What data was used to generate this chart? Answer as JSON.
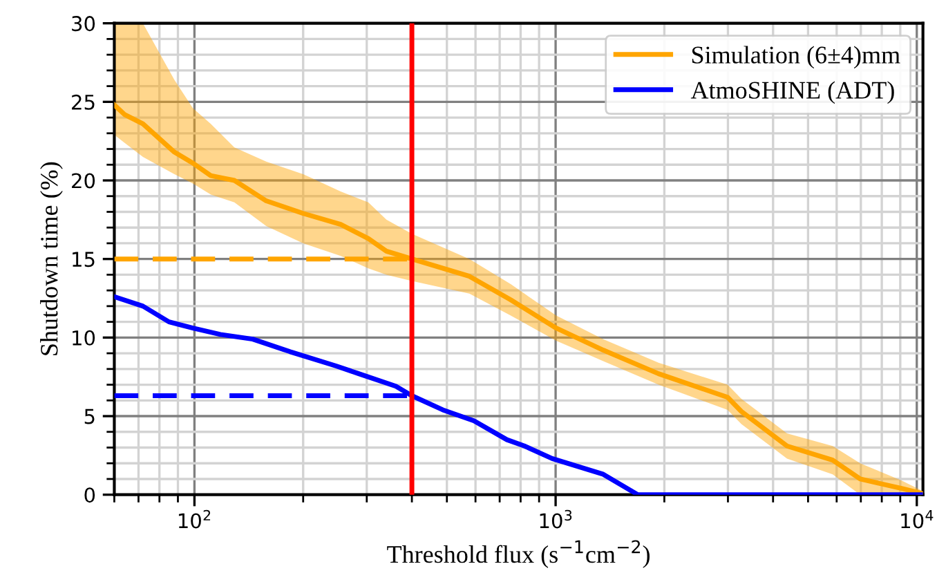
{
  "chart_data": {
    "type": "line",
    "xlabel": "Threshold flux (s$^{−1}$cm$^{−2}$)",
    "ylabel": "Shutdown time (%)",
    "log": "x",
    "grid": true,
    "legend": "top right",
    "line_style": "solid",
    "marker": "none",
    "xlim": [
      60,
      10400
    ],
    "ylim": [
      0,
      30
    ],
    "xticks": [
      {
        "value": 60,
        "label": null
      },
      {
        "value": 70,
        "label": null
      },
      {
        "value": 80,
        "label": null
      },
      {
        "value": 90,
        "label": null
      },
      {
        "value": 100,
        "label": "10$^{2}$"
      },
      {
        "value": 200,
        "label": null
      },
      {
        "value": 300,
        "label": null
      },
      {
        "value": 400,
        "label": null
      },
      {
        "value": 500,
        "label": null
      },
      {
        "value": 600,
        "label": null
      },
      {
        "value": 700,
        "label": null
      },
      {
        "value": 800,
        "label": null
      },
      {
        "value": 900,
        "label": null
      },
      {
        "value": 1000,
        "label": "10$^{3}$"
      },
      {
        "value": 2000,
        "label": null
      },
      {
        "value": 3000,
        "label": null
      },
      {
        "value": 4000,
        "label": null
      },
      {
        "value": 5000,
        "label": null
      },
      {
        "value": 6000,
        "label": null
      },
      {
        "value": 7000,
        "label": null
      },
      {
        "value": 8000,
        "label": null
      },
      {
        "value": 9000,
        "label": null
      },
      {
        "value": 10000,
        "label": "10$^{4}$"
      }
    ],
    "yticks": [
      0,
      {
        "value": 1,
        "label": null
      },
      {
        "value": 2,
        "label": null
      },
      {
        "value": 3,
        "label": null
      },
      {
        "value": 4,
        "label": null
      },
      5,
      {
        "value": 6,
        "label": null
      },
      {
        "value": 7,
        "label": null
      },
      {
        "value": 8,
        "label": null
      },
      {
        "value": 9,
        "label": null
      },
      10,
      {
        "value": 11,
        "label": null
      },
      {
        "value": 12,
        "label": null
      },
      {
        "value": 13,
        "label": null
      },
      {
        "value": 14,
        "label": null
      },
      15,
      {
        "value": 16,
        "label": null
      },
      {
        "value": 17,
        "label": null
      },
      {
        "value": 18,
        "label": null
      },
      {
        "value": 19,
        "label": null
      },
      20,
      {
        "value": 21,
        "label": null
      },
      {
        "value": 22,
        "label": null
      },
      {
        "value": 23,
        "label": null
      },
      {
        "value": 24,
        "label": null
      },
      25,
      {
        "value": 26,
        "label": null
      },
      {
        "value": 27,
        "label": null
      },
      {
        "value": 28,
        "label": null
      },
      {
        "value": 29,
        "label": null
      },
      30
    ],
    "series": [
      {
        "name": "Simulation (6±4)mm",
        "color": "#ffa500",
        "x": [
          60,
          64,
          72,
          88,
          99,
          111,
          129,
          158,
          200,
          254,
          303,
          340,
          400,
          577,
          751,
          1004,
          1355,
          1927,
          2993,
          3268,
          4372,
          5848,
          6970,
          9080,
          10260
        ],
        "values": [
          24.8,
          24.2,
          23.6,
          21.8,
          21.1,
          20.3,
          20.0,
          18.7,
          17.9,
          17.2,
          16.3,
          15.5,
          15.0,
          13.9,
          12.4,
          10.6,
          9.2,
          7.7,
          6.2,
          5.3,
          3.1,
          2.2,
          1.0,
          0.4,
          0.1
        ],
        "lower": [
          22.9,
          22.4,
          21.5,
          20.4,
          19.8,
          19.1,
          18.6,
          17.1,
          16.0,
          15.2,
          14.4,
          14.0,
          13.6,
          12.8,
          11.4,
          9.8,
          8.5,
          7.0,
          5.4,
          4.5,
          2.3,
          1.3,
          0.0,
          0.0,
          0.0
        ],
        "upper": [
          30,
          30,
          30,
          26.4,
          24.6,
          23.6,
          22.1,
          21.2,
          20.4,
          19.3,
          18.6,
          17.5,
          16.6,
          15.0,
          13.4,
          11.4,
          9.9,
          8.4,
          7.0,
          6.1,
          3.9,
          3.1,
          2.0,
          0.9,
          0.3
        ]
      },
      {
        "name": "AtmoSHINE (ADT)",
        "color": "#0000ff",
        "x": [
          60,
          72,
          85,
          99,
          118,
          145,
          184,
          246,
          285,
          361,
          400,
          487,
          594,
          733,
          820,
          978,
          1355,
          1689,
          10400
        ],
        "values": [
          12.6,
          12.0,
          11.0,
          10.6,
          10.2,
          9.9,
          9.1,
          8.2,
          7.7,
          6.9,
          6.3,
          5.4,
          4.7,
          3.5,
          3.1,
          2.3,
          1.3,
          0,
          0
        ]
      },
      {
        "color": "#ffa500",
        "line_style": "dashed",
        "x": [
          60,
          400
        ],
        "values": [
          15.0,
          15.0
        ]
      },
      {
        "color": "#0000ff",
        "line_style": "dashed",
        "x": [
          60,
          400
        ],
        "values": [
          6.3,
          6.3
        ]
      }
    ],
    "ref_lines": [
      {
        "axis": "x",
        "value": 400,
        "color": "#ff0000",
        "line_style": "solid"
      }
    ]
  }
}
